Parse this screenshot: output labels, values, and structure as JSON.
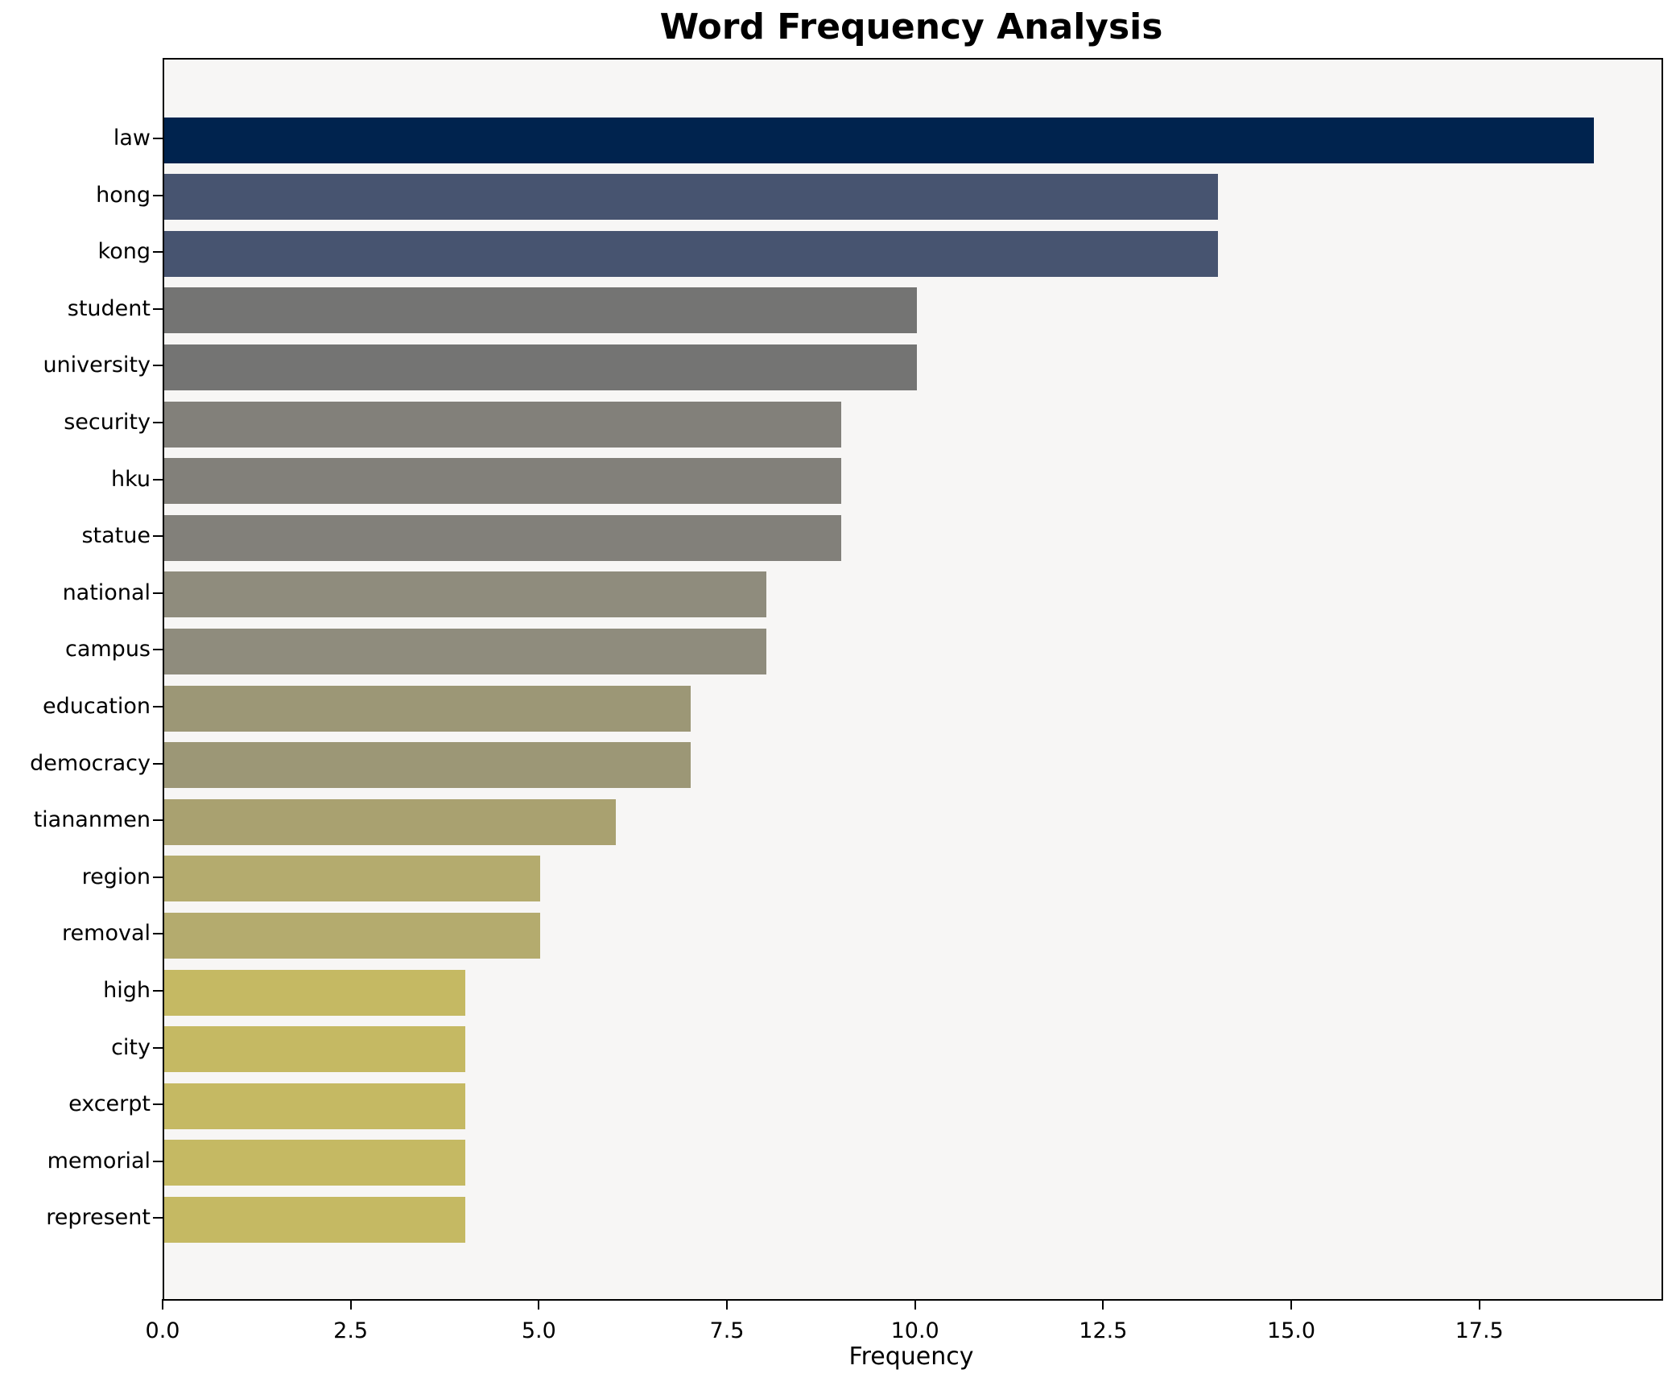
{
  "chart_data": {
    "type": "bar",
    "orientation": "horizontal",
    "title": "Word Frequency Analysis",
    "xlabel": "Frequency",
    "ylabel": "",
    "categories": [
      "law",
      "hong",
      "kong",
      "student",
      "university",
      "security",
      "hku",
      "statue",
      "national",
      "campus",
      "education",
      "democracy",
      "tiananmen",
      "region",
      "removal",
      "high",
      "city",
      "excerpt",
      "memorial",
      "represent"
    ],
    "values": [
      19,
      14,
      14,
      10,
      10,
      9,
      9,
      9,
      8,
      8,
      7,
      7,
      6,
      5,
      5,
      4,
      4,
      4,
      4,
      4
    ],
    "bar_colors": [
      "#00234e",
      "#475470",
      "#475470",
      "#747473",
      "#747473",
      "#82807a",
      "#82807a",
      "#82807a",
      "#8f8c7d",
      "#8f8c7d",
      "#9c9776",
      "#9c9776",
      "#a9a170",
      "#b4ab6e",
      "#b4ab6e",
      "#c5b963",
      "#c5b963",
      "#c5b963",
      "#c5b963",
      "#c5b963"
    ],
    "xlim": [
      0,
      19.9
    ],
    "xticks": [
      0.0,
      2.5,
      5.0,
      7.5,
      10.0,
      12.5,
      15.0,
      17.5
    ],
    "xtick_labels": [
      "0.0",
      "2.5",
      "5.0",
      "7.5",
      "10.0",
      "12.5",
      "15.0",
      "17.5"
    ],
    "grid": false,
    "legend": "none",
    "colormap": "cividis",
    "plot_background": "#f7f6f5",
    "figure_background": "#ffffff",
    "spine_color": "#000000"
  }
}
